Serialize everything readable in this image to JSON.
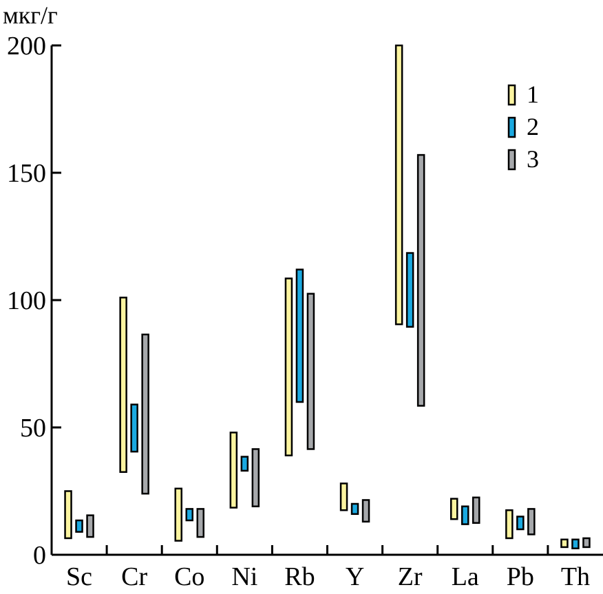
{
  "chart_data": {
    "type": "bar",
    "subtype": "floating-range",
    "unit_label": "мкг/г",
    "categories": [
      "Sc",
      "Cr",
      "Co",
      "Ni",
      "Rb",
      "Y",
      "Zr",
      "La",
      "Pb",
      "Th"
    ],
    "ylim": [
      0,
      200
    ],
    "yticks": [
      0,
      50,
      100,
      150,
      200
    ],
    "grid": false,
    "legend_position": "top-right",
    "series": [
      {
        "name": "1",
        "color": "#FBF4A0",
        "ranges": [
          [
            6.5,
            25
          ],
          [
            32.5,
            101
          ],
          [
            5.5,
            26
          ],
          [
            18.5,
            48
          ],
          [
            39,
            108.5
          ],
          [
            17.5,
            28
          ],
          [
            90.5,
            200
          ],
          [
            14,
            22
          ],
          [
            6.5,
            17.5
          ],
          [
            3,
            6
          ]
        ]
      },
      {
        "name": "2",
        "color": "#1BA9E0",
        "ranges": [
          [
            9,
            13.5
          ],
          [
            40.5,
            59
          ],
          [
            13.5,
            18
          ],
          [
            33,
            38.5
          ],
          [
            60,
            112
          ],
          [
            16,
            20
          ],
          [
            89.5,
            118.5
          ],
          [
            12,
            19
          ],
          [
            10,
            15
          ],
          [
            2.5,
            6
          ]
        ]
      },
      {
        "name": "3",
        "color": "#A6A8AB",
        "ranges": [
          [
            7,
            15.5
          ],
          [
            24,
            86.5
          ],
          [
            7,
            18
          ],
          [
            19,
            41.5
          ],
          [
            41.5,
            102.5
          ],
          [
            13,
            21.5
          ],
          [
            58.5,
            157
          ],
          [
            12.5,
            22.5
          ],
          [
            8,
            18
          ],
          [
            3,
            6.5
          ]
        ]
      }
    ]
  }
}
